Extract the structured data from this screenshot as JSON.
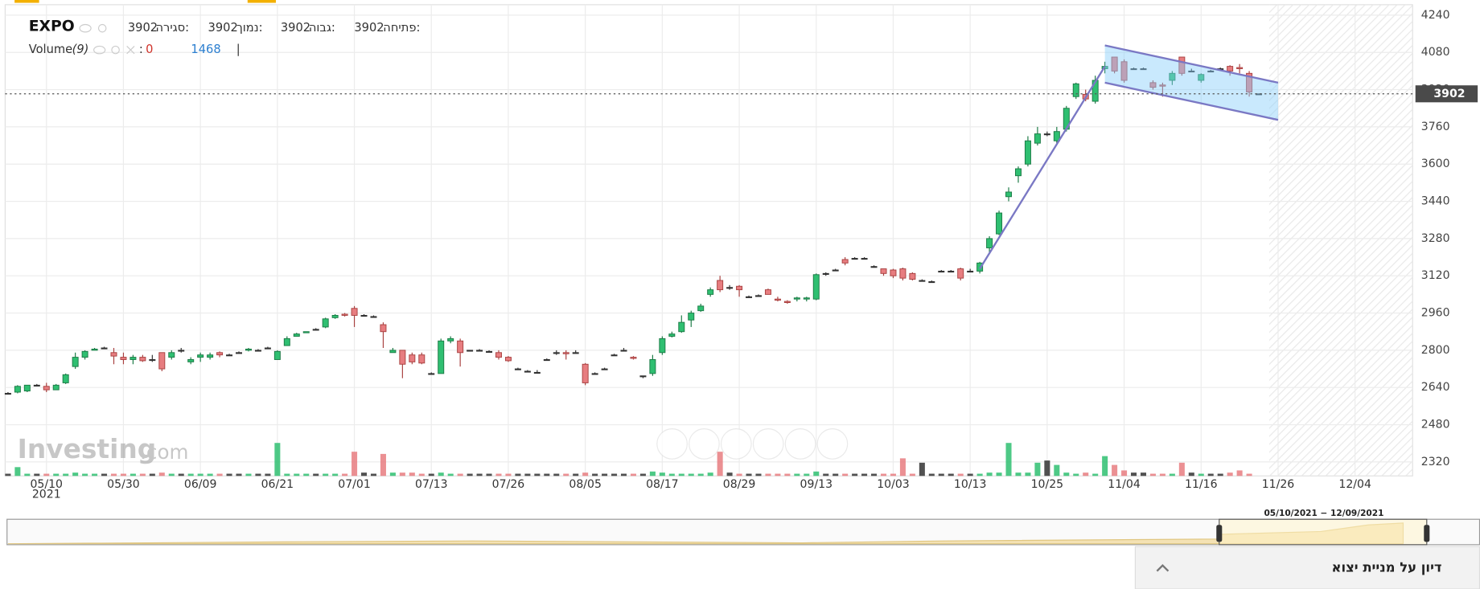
{
  "chart_data": {
    "type": "candlestick",
    "header": {
      "symbol": "EXPO",
      "open_label": "פתיחה:",
      "open": 3902,
      "high_label": "גבוה:",
      "high": 3902,
      "low_label": "נמוך:",
      "low": 3902,
      "close_label": "סגירה:",
      "close": 3902
    },
    "volume_header": {
      "label": "Volume",
      "period": "(9)",
      "value_prefix": ":",
      "value": 0,
      "average": 1468,
      "separator": "|"
    },
    "watermark": "Investing",
    "watermark_suffix": ".com",
    "year_label": "2021",
    "categories": [
      null,
      null,
      null,
      null,
      "05/10",
      null,
      null,
      null,
      null,
      null,
      null,
      null,
      "05/30",
      null,
      null,
      null,
      null,
      null,
      null,
      null,
      "06/09",
      null,
      null,
      null,
      null,
      null,
      null,
      null,
      "06/21",
      null,
      null,
      null,
      null,
      null,
      null,
      null,
      "07/01",
      null,
      null,
      null,
      null,
      null,
      null,
      null,
      "07/13",
      null,
      null,
      null,
      null,
      null,
      null,
      null,
      "07/26",
      null,
      null,
      null,
      null,
      null,
      null,
      null,
      "08/05",
      null,
      null,
      null,
      null,
      null,
      null,
      null,
      "08/17",
      null,
      null,
      null,
      null,
      null,
      null,
      null,
      "08/29",
      null,
      null,
      null,
      null,
      null,
      null,
      null,
      "09/13",
      null,
      null,
      null,
      null,
      null,
      null,
      null,
      "10/03",
      null,
      null,
      null,
      null,
      null,
      null,
      null,
      "10/13",
      null,
      null,
      null,
      null,
      null,
      null,
      null,
      "10/25",
      null,
      null,
      null,
      null,
      null,
      null,
      null,
      "11/04",
      null,
      null,
      null,
      null,
      null,
      null,
      null,
      "11/16",
      null,
      null,
      null,
      null,
      null,
      null,
      null,
      "11/26",
      null,
      null,
      null,
      null,
      null,
      null,
      null,
      "12/04"
    ],
    "open": [
      2615,
      2620,
      2625,
      2650,
      2645,
      2630,
      2660,
      2730,
      2770,
      2800,
      2810,
      2790,
      2770,
      2760,
      2770,
      2760,
      2790,
      2770,
      2800,
      2750,
      2770,
      2770,
      2790,
      2780,
      2790,
      2800,
      2800,
      2810,
      2760,
      2820,
      2860,
      2875,
      2890,
      2900,
      2940,
      2955,
      2980,
      2950,
      2945,
      2910,
      2790,
      2800,
      2780,
      2780,
      2700,
      2700,
      2840,
      2840,
      2800,
      2800,
      2795,
      2790,
      2770,
      2720,
      2710,
      2705,
      2760,
      2790,
      2790,
      2790,
      2740,
      2700,
      2720,
      2780,
      2800,
      2770,
      2690,
      2700,
      2790,
      2860,
      2880,
      2930,
      2970,
      3040,
      3100,
      3070,
      3075,
      3030,
      3035,
      3060,
      3020,
      3010,
      3020,
      3020,
      3020,
      3130,
      3145,
      3190,
      3195,
      3195,
      3160,
      3150,
      3145,
      3150,
      3130,
      3100,
      3095,
      3140,
      3140,
      3150,
      3140,
      3140,
      3240,
      3300,
      3460,
      3550,
      3600,
      3690,
      3730,
      3700,
      3750,
      3890,
      3900,
      3870,
      4010,
      4060,
      4040,
      4010,
      4010,
      3950,
      3940,
      3960,
      4060,
      4000,
      3960,
      4000,
      4010,
      4020,
      4015,
      3990,
      3902,
      null,
      null,
      null,
      null,
      null,
      null,
      null,
      null,
      null,
      null
    ],
    "high": [
      2620,
      2650,
      2650,
      2655,
      2660,
      2655,
      2700,
      2790,
      2800,
      2810,
      2815,
      2810,
      2790,
      2780,
      2780,
      2780,
      2790,
      2800,
      2810,
      2770,
      2790,
      2790,
      2795,
      2785,
      2795,
      2810,
      2805,
      2815,
      2800,
      2860,
      2875,
      2880,
      2895,
      2940,
      2955,
      2960,
      2990,
      2955,
      2950,
      2920,
      2810,
      2800,
      2790,
      2790,
      2705,
      2850,
      2860,
      2850,
      2800,
      2805,
      2800,
      2800,
      2775,
      2725,
      2715,
      2715,
      2765,
      2800,
      2800,
      2800,
      2745,
      2705,
      2725,
      2785,
      2810,
      2775,
      2690,
      2780,
      2860,
      2880,
      2950,
      2970,
      3000,
      3070,
      3120,
      3080,
      3080,
      3035,
      3040,
      3065,
      3030,
      3015,
      3030,
      3030,
      3130,
      3135,
      3150,
      3200,
      3200,
      3200,
      3165,
      3150,
      3150,
      3155,
      3135,
      3105,
      3100,
      3145,
      3145,
      3155,
      3150,
      3180,
      3290,
      3400,
      3500,
      3590,
      3720,
      3760,
      3740,
      3760,
      3850,
      3950,
      3920,
      3980,
      4040,
      4060,
      4050,
      4015,
      4015,
      3960,
      3950,
      4000,
      4060,
      4010,
      3990,
      4005,
      4015,
      4025,
      4030,
      4000,
      3902,
      null,
      null,
      null,
      null,
      null,
      null,
      null,
      null,
      null,
      null
    ],
    "low": [
      2610,
      2615,
      2620,
      2645,
      2620,
      2630,
      2655,
      2720,
      2760,
      2800,
      2810,
      2740,
      2740,
      2740,
      2750,
      2750,
      2710,
      2760,
      2790,
      2740,
      2750,
      2760,
      2770,
      2780,
      2790,
      2795,
      2800,
      2810,
      2760,
      2820,
      2860,
      2875,
      2885,
      2895,
      2935,
      2945,
      2900,
      2945,
      2940,
      2810,
      2790,
      2680,
      2740,
      2740,
      2700,
      2700,
      2830,
      2730,
      2800,
      2800,
      2795,
      2760,
      2750,
      2715,
      2705,
      2705,
      2760,
      2780,
      2760,
      2790,
      2650,
      2700,
      2720,
      2780,
      2800,
      2760,
      2680,
      2690,
      2780,
      2855,
      2875,
      2900,
      2965,
      3030,
      3050,
      3060,
      3030,
      3025,
      3030,
      3040,
      3010,
      3000,
      3010,
      3010,
      3015,
      3120,
      3140,
      3165,
      3190,
      3190,
      3155,
      3120,
      3110,
      3100,
      3100,
      3095,
      3095,
      3135,
      3135,
      3100,
      3135,
      3130,
      3220,
      3295,
      3440,
      3520,
      3590,
      3680,
      3720,
      3690,
      3740,
      3880,
      3870,
      3860,
      3990,
      3990,
      3950,
      4005,
      4005,
      3920,
      3890,
      3940,
      3980,
      3995,
      3950,
      3995,
      4005,
      3980,
      3990,
      3890,
      3902,
      null,
      null,
      null,
      null,
      null,
      null,
      null,
      null,
      null,
      null
    ],
    "close": [
      2615,
      2645,
      2650,
      2650,
      2630,
      2650,
      2695,
      2770,
      2795,
      2805,
      2810,
      2775,
      2760,
      2770,
      2755,
      2760,
      2720,
      2790,
      2800,
      2760,
      2780,
      2780,
      2780,
      2780,
      2790,
      2805,
      2800,
      2810,
      2795,
      2850,
      2870,
      2880,
      2890,
      2935,
      2950,
      2950,
      2950,
      2950,
      2945,
      2880,
      2800,
      2740,
      2750,
      2745,
      2700,
      2840,
      2850,
      2790,
      2800,
      2800,
      2795,
      2770,
      2755,
      2720,
      2710,
      2705,
      2760,
      2790,
      2785,
      2790,
      2660,
      2700,
      2720,
      2780,
      2800,
      2765,
      2690,
      2760,
      2850,
      2870,
      2920,
      2960,
      2990,
      3060,
      3060,
      3070,
      3060,
      3030,
      3035,
      3040,
      3015,
      3005,
      3025,
      3025,
      3125,
      3130,
      3145,
      3175,
      3195,
      3195,
      3160,
      3130,
      3120,
      3110,
      3105,
      3100,
      3095,
      3140,
      3140,
      3110,
      3140,
      3175,
      3280,
      3390,
      3480,
      3580,
      3700,
      3730,
      3730,
      3740,
      3840,
      3945,
      3880,
      3960,
      4020,
      4000,
      3960,
      4010,
      4010,
      3930,
      3935,
      3990,
      3990,
      4000,
      3985,
      4000,
      4010,
      4000,
      4010,
      3910,
      3902,
      null,
      null,
      null,
      null,
      null,
      null,
      null,
      null,
      null,
      null
    ],
    "volume": [
      2,
      8,
      2,
      2,
      2,
      2,
      2,
      3,
      2,
      2,
      2,
      2,
      2,
      2,
      2,
      2,
      3,
      2,
      2,
      2,
      2,
      2,
      2,
      2,
      2,
      2,
      2,
      2,
      30,
      2,
      2,
      2,
      2,
      2,
      2,
      2,
      22,
      3,
      2,
      20,
      3,
      3,
      3,
      2,
      2,
      3,
      2,
      2,
      2,
      2,
      2,
      2,
      2,
      2,
      2,
      2,
      2,
      2,
      2,
      2,
      3,
      2,
      2,
      2,
      2,
      2,
      2,
      4,
      3,
      2,
      2,
      2,
      2,
      3,
      22,
      3,
      2,
      2,
      2,
      2,
      2,
      2,
      2,
      2,
      4,
      2,
      2,
      2,
      2,
      2,
      2,
      2,
      2,
      16,
      2,
      12,
      2,
      2,
      2,
      2,
      2,
      2,
      3,
      3,
      30,
      3,
      3,
      12,
      14,
      10,
      3,
      2,
      3,
      2,
      18,
      10,
      5,
      3,
      3,
      2,
      2,
      2,
      12,
      3,
      2,
      2,
      2,
      3,
      5,
      2,
      0,
      null,
      null,
      null,
      null,
      null,
      null,
      null,
      null,
      null,
      null
    ],
    "up_color": "#2fbf71",
    "down_color": "#e77d80",
    "flat_color": "#333333",
    "ylim": [
      2260,
      4285
    ],
    "yticks": [
      2320,
      2480,
      2640,
      2800,
      2960,
      3120,
      3280,
      3440,
      3600,
      3760,
      3920,
      4080,
      4240
    ],
    "grid": true,
    "price_line": 3902,
    "drawings": {
      "trendline": [
        [
          101,
          3150
        ],
        [
          114,
          4020
        ]
      ],
      "channel_upper": [
        [
          114,
          4110
        ],
        [
          132,
          3950
        ]
      ],
      "channel_lower": [
        [
          114,
          3950
        ],
        [
          132,
          3790
        ]
      ]
    },
    "navigator": {
      "range_label": "05/10/2021 − 12/09/2021"
    },
    "footer": {
      "title": "דיון על מניית יצוא"
    }
  }
}
